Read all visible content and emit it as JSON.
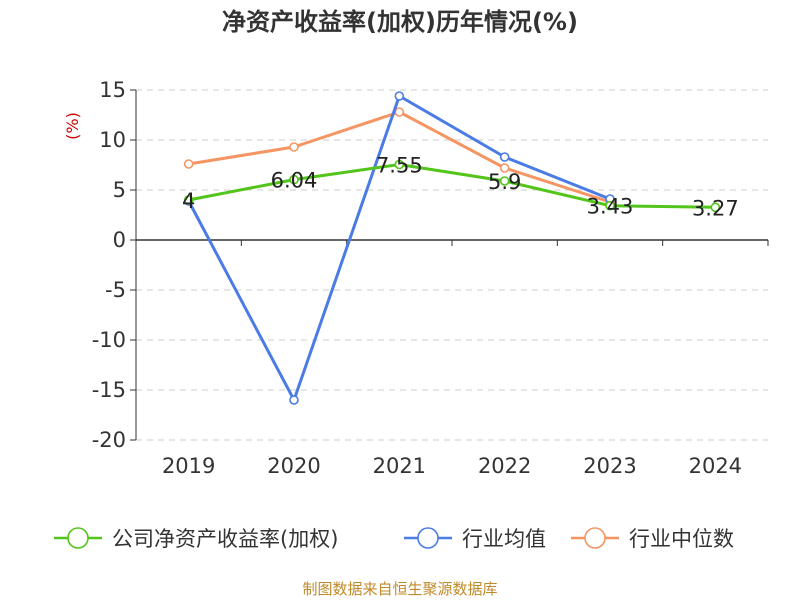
{
  "colors": {
    "company": "#52c41a",
    "industry_avg": "#4b7be5",
    "industry_median": "#f59563",
    "grid": "#cccccc",
    "axis": "#333333"
  },
  "chart_data": {
    "type": "line",
    "title": "净资产收益率(加权)历年情况(%)",
    "ylabel": "(%)",
    "xlabel": "",
    "categories": [
      "2019",
      "2020",
      "2021",
      "2022",
      "2023",
      "2024"
    ],
    "ylim": [
      -20,
      15
    ],
    "yticks": [
      15,
      10,
      5,
      0,
      -5,
      -10,
      -15,
      -20
    ],
    "grid": true,
    "legend_position": "bottom",
    "series": [
      {
        "name": "公司净资产收益率(加权)",
        "values": [
          4,
          6.04,
          7.55,
          5.9,
          3.43,
          3.27
        ],
        "data_labels": [
          "4",
          "6.04",
          "7.55",
          "5.9",
          "3.43",
          "3.27"
        ]
      },
      {
        "name": "行业均值",
        "values": [
          3.9,
          -16,
          14.4,
          8.3,
          4.1,
          null
        ]
      },
      {
        "name": "行业中位数",
        "values": [
          7.6,
          9.3,
          12.8,
          7.2,
          3.8,
          null
        ]
      }
    ]
  },
  "source": "制图数据来自恒生聚源数据库"
}
